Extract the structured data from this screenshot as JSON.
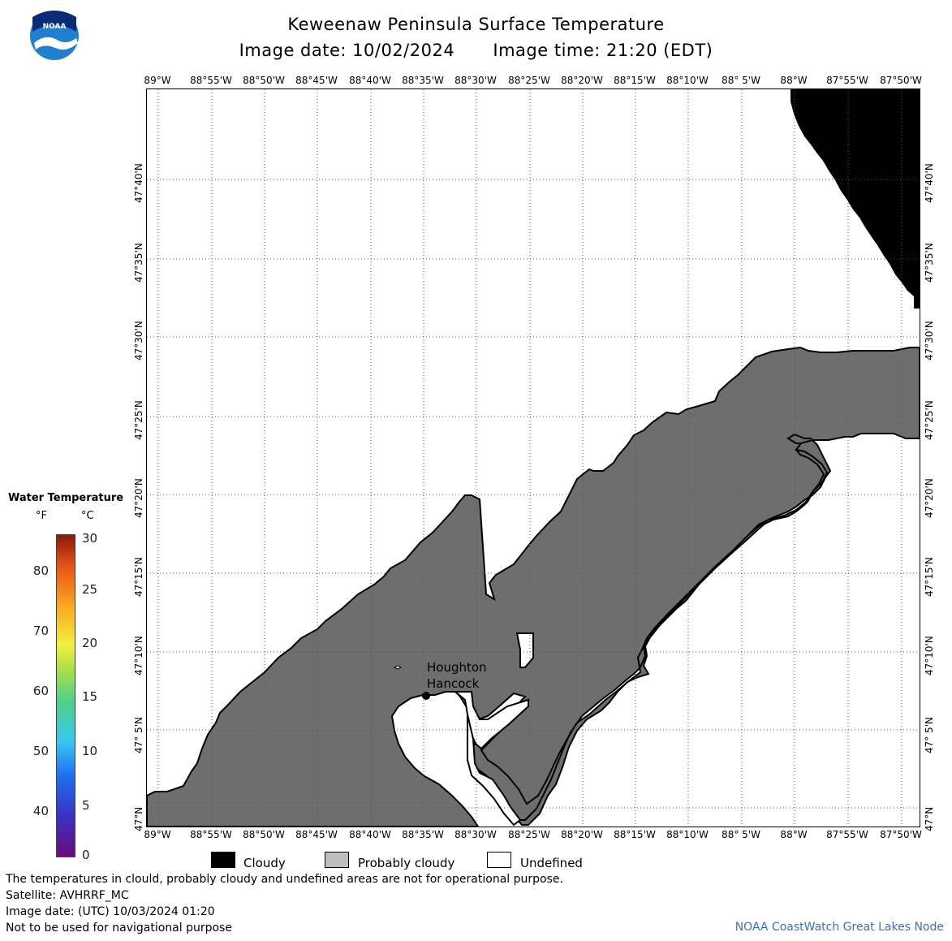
{
  "header": {
    "title": "Keweenaw Peninsula Surface Temperature",
    "image_date": "Image date: 10/02/2024",
    "image_time": "Image time: 21:20 (EDT)"
  },
  "logo": {
    "text": "NOAA",
    "icon": "noaa-logo"
  },
  "map": {
    "lon_labels": [
      "89°W",
      "88°55'W",
      "88°50'W",
      "88°45'W",
      "88°40'W",
      "88°35'W",
      "88°30'W",
      "88°25'W",
      "88°20'W",
      "88°15'W",
      "88°10'W",
      "88° 5'W",
      "88°W",
      "87°55'W",
      "87°50'W"
    ],
    "lat_labels": [
      "47°40'N",
      "47°35'N",
      "47°30'N",
      "47°25'N",
      "47°20'N",
      "47°15'N",
      "47°10'N",
      "47° 5'N",
      "47°N"
    ],
    "place_labels": {
      "houghton": "Houghton",
      "hancock": "Hancock"
    },
    "colors": {
      "land": "#ffffff",
      "water_probably_cloudy": "#6e6e6e",
      "cloudy": "#000000",
      "grid": "#555555"
    }
  },
  "legend": {
    "title": "Water Temperature",
    "unit_f": "°F",
    "unit_c": "°C",
    "f_ticks": [
      "80",
      "70",
      "60",
      "50",
      "40"
    ],
    "c_ticks": [
      "30",
      "25",
      "20",
      "15",
      "10",
      "5",
      "0"
    ],
    "categories": [
      {
        "label": "Cloudy",
        "color": "#000000"
      },
      {
        "label": "Probably cloudy",
        "color": "#bebebe"
      },
      {
        "label": "Undefined",
        "color": "#ffffff"
      }
    ]
  },
  "footer": {
    "line1": "The temperatures in clould, probably cloudy and undefined areas are not for operational purpose.",
    "line2": "Satellite: AVHRRF_MC",
    "line3": "Image date: (UTC) 10/03/2024  01:20",
    "line4": "Not to be used for navigational purpose",
    "credit": "NOAA CoastWatch Great Lakes Node"
  }
}
